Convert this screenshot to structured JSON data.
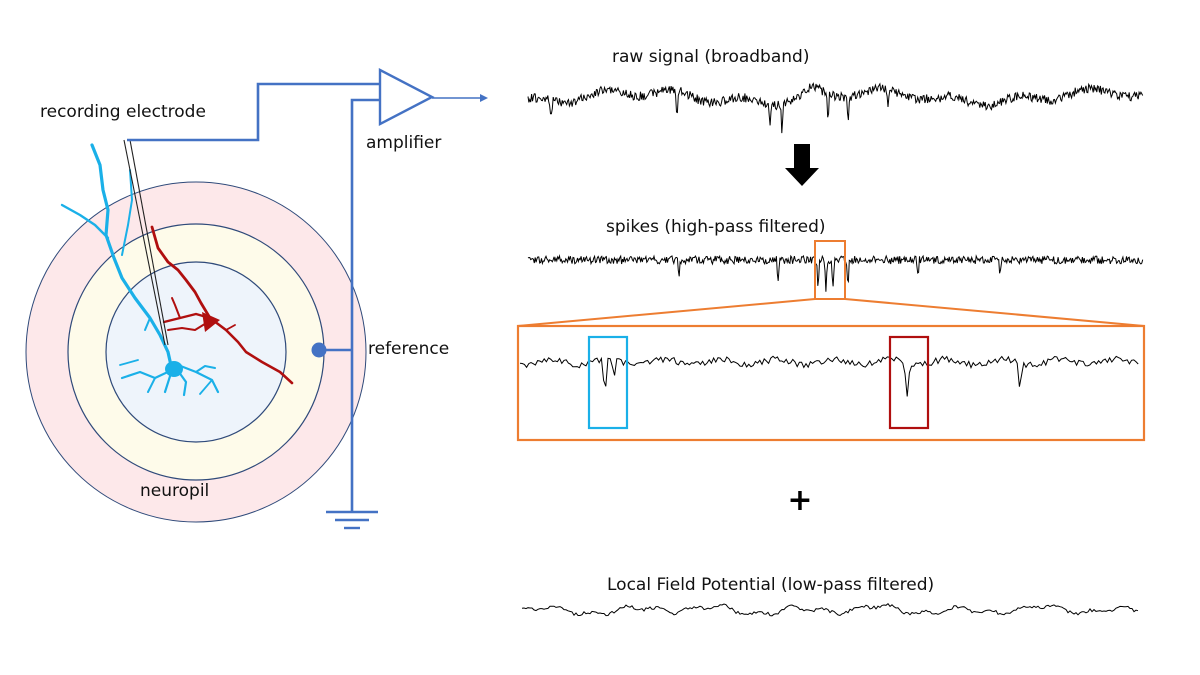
{
  "labels": {
    "recording_electrode": "recording electrode",
    "amplifier": "amplifier",
    "reference": "reference",
    "neuropil": "neuropil",
    "raw_signal": "raw signal (broadband)",
    "spikes": "spikes (high-pass filtered)",
    "plus": "+",
    "lfp": "Local Field Potential (low-pass filtered)"
  },
  "colors": {
    "wire": "#4472c4",
    "neuron_blue": "#1ab0e8",
    "neuron_red": "#b00f0f",
    "zoom_box": "#ed7d31",
    "outer_ring": "#fde8ea",
    "middle_ring": "#fefbea",
    "inner_disc": "#eef4fb",
    "ring_stroke": "#2f4a7a"
  },
  "icons": {
    "arrow": "down-arrow-icon",
    "ground": "ground-icon"
  }
}
